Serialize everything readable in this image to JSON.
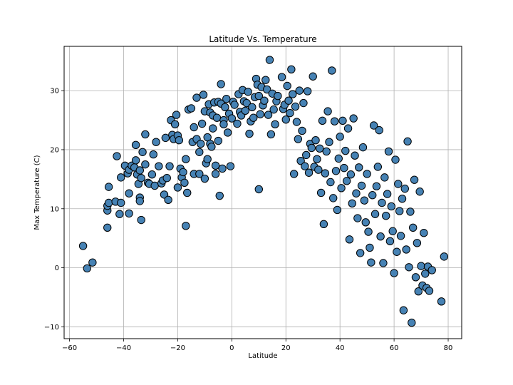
{
  "chart_data": {
    "type": "scatter",
    "title": "Latitude Vs. Temperature",
    "xlabel": "Latitude",
    "ylabel": "Max Temperature (C)",
    "xlim": [
      -62,
      85
    ],
    "ylim": [
      -12,
      37.5
    ],
    "xticks": [
      -60,
      -40,
      -20,
      0,
      20,
      40,
      60,
      80
    ],
    "yticks": [
      -10,
      0,
      10,
      20,
      30
    ],
    "grid": true,
    "marker_color": "#4682b4",
    "marker_edge_color": "#000000",
    "points": [
      [
        -55,
        3.7
      ],
      [
        -53.5,
        -0.1
      ],
      [
        -51.5,
        0.9
      ],
      [
        -46,
        6.8
      ],
      [
        -46,
        9.7
      ],
      [
        -46,
        10.5
      ],
      [
        -45.5,
        11.0
      ],
      [
        -45.5,
        13.7
      ],
      [
        -43,
        11.2
      ],
      [
        -41.5,
        9.1
      ],
      [
        -41,
        11.0
      ],
      [
        -41,
        15.3
      ],
      [
        -42.5,
        18.9
      ],
      [
        -39.5,
        17.3
      ],
      [
        -38.5,
        16.0
      ],
      [
        -38,
        16.6
      ],
      [
        -38,
        12.6
      ],
      [
        -38,
        9.2
      ],
      [
        -37,
        17.3
      ],
      [
        -36,
        17.0
      ],
      [
        -35.5,
        20.8
      ],
      [
        -35.5,
        18.2
      ],
      [
        -35,
        15.8
      ],
      [
        -34.5,
        14.2
      ],
      [
        -34,
        16.5
      ],
      [
        -34,
        11.9
      ],
      [
        -34,
        11.3
      ],
      [
        -33.5,
        8.1
      ],
      [
        -33.5,
        15.2
      ],
      [
        -33,
        19.6
      ],
      [
        -32,
        22.6
      ],
      [
        -32,
        17.5
      ],
      [
        -31,
        14.4
      ],
      [
        -30.5,
        14.2
      ],
      [
        -29.5,
        15.8
      ],
      [
        -29,
        19.2
      ],
      [
        -28.5,
        13.9
      ],
      [
        -28,
        21.3
      ],
      [
        -27,
        17.2
      ],
      [
        -26,
        14.3
      ],
      [
        -25.5,
        14.8
      ],
      [
        -25,
        12.4
      ],
      [
        -24.5,
        22.0
      ],
      [
        -24,
        15.2
      ],
      [
        -23.5,
        11.5
      ],
      [
        -23,
        17.2
      ],
      [
        -22.5,
        25.0
      ],
      [
        -22,
        22.5
      ],
      [
        -21.5,
        21.8
      ],
      [
        -21,
        24.3
      ],
      [
        -20.5,
        25.9
      ],
      [
        -20,
        13.6
      ],
      [
        -20,
        22.4
      ],
      [
        -19.5,
        21.6
      ],
      [
        -19,
        16.8
      ],
      [
        -18.5,
        15.3
      ],
      [
        -18,
        16.2
      ],
      [
        -17.5,
        14.4
      ],
      [
        -17,
        18.4
      ],
      [
        -17,
        7.1
      ],
      [
        -16.5,
        12.7
      ],
      [
        -16,
        26.8
      ],
      [
        -15,
        27.0
      ],
      [
        -14.5,
        21.3
      ],
      [
        -14,
        23.8
      ],
      [
        -14,
        15.9
      ],
      [
        -13,
        28.8
      ],
      [
        -13,
        21.8
      ],
      [
        -12,
        15.9
      ],
      [
        -12,
        19.6
      ],
      [
        -11.5,
        21.0
      ],
      [
        -11,
        24.4
      ],
      [
        -10.5,
        29.3
      ],
      [
        -10,
        26.5
      ],
      [
        -10,
        15.1
      ],
      [
        -9.5,
        17.7
      ],
      [
        -9,
        22.1
      ],
      [
        -9,
        18.4
      ],
      [
        -8.5,
        27.7
      ],
      [
        -8,
        26.3
      ],
      [
        -8,
        21.0
      ],
      [
        -7.5,
        20.5
      ],
      [
        -7,
        25.8
      ],
      [
        -7,
        23.6
      ],
      [
        -6.5,
        28.0
      ],
      [
        -6,
        17.3
      ],
      [
        -6,
        15.9
      ],
      [
        -5.5,
        25.4
      ],
      [
        -5,
        28.1
      ],
      [
        -5,
        21.5
      ],
      [
        -4.5,
        12.2
      ],
      [
        -4,
        31.1
      ],
      [
        -4,
        27.8
      ],
      [
        -3.5,
        16.8
      ],
      [
        -3,
        25.0
      ],
      [
        -3,
        24.3
      ],
      [
        -2.5,
        27.2
      ],
      [
        -2,
        28.6
      ],
      [
        -1.5,
        22.9
      ],
      [
        -1,
        26.1
      ],
      [
        -0.5,
        17.2
      ],
      [
        0,
        25.3
      ],
      [
        0.5,
        28.1
      ],
      [
        1,
        27.6
      ],
      [
        2,
        24.4
      ],
      [
        2.5,
        29.4
      ],
      [
        3,
        26.4
      ],
      [
        3.5,
        25.8
      ],
      [
        4,
        30.1
      ],
      [
        4.5,
        28.2
      ],
      [
        5,
        26.6
      ],
      [
        5.5,
        27.9
      ],
      [
        6,
        29.8
      ],
      [
        6.5,
        22.7
      ],
      [
        7,
        24.8
      ],
      [
        7.5,
        27.2
      ],
      [
        8,
        25.4
      ],
      [
        8.5,
        28.9
      ],
      [
        9,
        32.0
      ],
      [
        9.5,
        31.0
      ],
      [
        10,
        13.3
      ],
      [
        10,
        29.1
      ],
      [
        10.5,
        26.0
      ],
      [
        11,
        30.6
      ],
      [
        11.5,
        27.5
      ],
      [
        12,
        28.3
      ],
      [
        12.5,
        31.8
      ],
      [
        13,
        30.2
      ],
      [
        13.5,
        25.9
      ],
      [
        14,
        35.2
      ],
      [
        14.5,
        22.6
      ],
      [
        15,
        29.5
      ],
      [
        15.5,
        26.8
      ],
      [
        16,
        24.3
      ],
      [
        16.5,
        28.2
      ],
      [
        17,
        29.1
      ],
      [
        18.5,
        32.3
      ],
      [
        19,
        26.9
      ],
      [
        19.5,
        27.6
      ],
      [
        20,
        25.1
      ],
      [
        20.5,
        30.8
      ],
      [
        21,
        28.3
      ],
      [
        21.5,
        26.2
      ],
      [
        22,
        33.6
      ],
      [
        22.5,
        29.4
      ],
      [
        23,
        15.9
      ],
      [
        23.5,
        27.3
      ],
      [
        24,
        24.7
      ],
      [
        24.5,
        21.8
      ],
      [
        25,
        30.0
      ],
      [
        25.5,
        18.1
      ],
      [
        26,
        23.2
      ],
      [
        26.5,
        27.9
      ],
      [
        27,
        17.2
      ],
      [
        27.5,
        19.1
      ],
      [
        28,
        29.9
      ],
      [
        28.5,
        16.1
      ],
      [
        29,
        21.0
      ],
      [
        29.5,
        20.3
      ],
      [
        30,
        32.4
      ],
      [
        30.5,
        17.1
      ],
      [
        31,
        21.6
      ],
      [
        31.5,
        18.4
      ],
      [
        32,
        16.6
      ],
      [
        32.5,
        20.2
      ],
      [
        33,
        12.7
      ],
      [
        33.5,
        24.9
      ],
      [
        34,
        7.4
      ],
      [
        34.5,
        16.0
      ],
      [
        35,
        19.7
      ],
      [
        35.5,
        26.5
      ],
      [
        36,
        21.3
      ],
      [
        36.5,
        14.5
      ],
      [
        37,
        33.4
      ],
      [
        37.5,
        11.8
      ],
      [
        38,
        24.8
      ],
      [
        38.5,
        16.4
      ],
      [
        39,
        9.8
      ],
      [
        39.5,
        18.5
      ],
      [
        40,
        22.2
      ],
      [
        40.5,
        13.5
      ],
      [
        41,
        24.9
      ],
      [
        41.5,
        16.9
      ],
      [
        42,
        19.8
      ],
      [
        42.5,
        14.7
      ],
      [
        43,
        23.6
      ],
      [
        43.5,
        4.8
      ],
      [
        44,
        15.8
      ],
      [
        44.5,
        10.9
      ],
      [
        45,
        25.3
      ],
      [
        45.5,
        19.0
      ],
      [
        46,
        12.6
      ],
      [
        46.5,
        8.4
      ],
      [
        47,
        17.0
      ],
      [
        47.5,
        2.5
      ],
      [
        48,
        13.9
      ],
      [
        48.5,
        20.4
      ],
      [
        49,
        11.4
      ],
      [
        49.5,
        7.7
      ],
      [
        50,
        15.9
      ],
      [
        50.5,
        6.1
      ],
      [
        51,
        3.4
      ],
      [
        51.5,
        0.9
      ],
      [
        52,
        12.3
      ],
      [
        52.5,
        24.1
      ],
      [
        53,
        9.1
      ],
      [
        53.5,
        13.8
      ],
      [
        54,
        17.1
      ],
      [
        54.5,
        23.3
      ],
      [
        55,
        5.3
      ],
      [
        55.5,
        11.0
      ],
      [
        56,
        0.8
      ],
      [
        56.5,
        15.3
      ],
      [
        57,
        8.8
      ],
      [
        57.5,
        12.5
      ],
      [
        58,
        19.7
      ],
      [
        58.5,
        4.5
      ],
      [
        59,
        10.4
      ],
      [
        59.5,
        6.2
      ],
      [
        60,
        -0.9
      ],
      [
        60.5,
        18.3
      ],
      [
        61,
        2.7
      ],
      [
        61.5,
        14.2
      ],
      [
        62,
        9.6
      ],
      [
        62.5,
        5.4
      ],
      [
        63,
        11.7
      ],
      [
        63.5,
        -7.2
      ],
      [
        64,
        13.4
      ],
      [
        64.5,
        3.1
      ],
      [
        65,
        21.4
      ],
      [
        65.5,
        0.1
      ],
      [
        66,
        9.5
      ],
      [
        66.5,
        -9.3
      ],
      [
        67,
        6.8
      ],
      [
        67.5,
        14.9
      ],
      [
        68,
        -1.6
      ],
      [
        68.5,
        4.2
      ],
      [
        69,
        -4.0
      ],
      [
        69.5,
        12.9
      ],
      [
        70,
        0.3
      ],
      [
        70.5,
        -3.0
      ],
      [
        71,
        5.9
      ],
      [
        71.5,
        -1.0
      ],
      [
        72,
        -3.4
      ],
      [
        72.5,
        0.2
      ],
      [
        73,
        -3.9
      ],
      [
        74,
        -0.4
      ],
      [
        77.5,
        -5.7
      ],
      [
        78.5,
        1.9
      ]
    ]
  }
}
